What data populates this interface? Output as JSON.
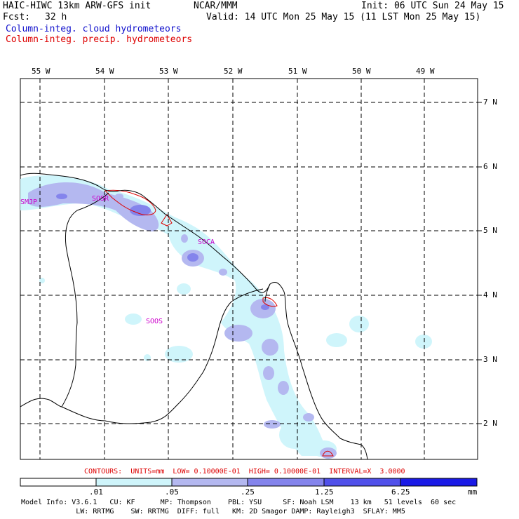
{
  "header": {
    "title": "HAIC-HIWC 13km ARW-GFS init",
    "org": "NCAR/MMM",
    "init": "Init: 06 UTC Sun 24 May 15",
    "fcst_label": "Fcst:",
    "fcst_value": "32 h",
    "valid": "Valid: 14 UTC Mon 25 May 15 (11 LST Mon 25 May 15)",
    "field1": "Column-integ. cloud hydrometeors",
    "field2": "Column-integ. precip. hydrometeors"
  },
  "colors": {
    "field1": "#1010cc",
    "field2": "#dd0000",
    "stations": "#cc00cc",
    "contours_text": "#dd0000"
  },
  "axes": {
    "lon_labels": [
      "55 W",
      "54 W",
      "53 W",
      "52 W",
      "51 W",
      "50 W",
      "49 W"
    ],
    "lat_labels": [
      "7 N",
      "6 N",
      "5 N",
      "4 N",
      "3 N",
      "2 N"
    ]
  },
  "stations": [
    "SMJP",
    "SOSR",
    "SOCA",
    "SOOS"
  ],
  "contours": {
    "text": "CONTOURS:  UNITS=mm  LOW= 0.10000E-01  HIGH= 0.10000E-01  INTERVAL=X  3.0000"
  },
  "colorbar": {
    "ticks": [
      ".01",
      ".05",
      ".25",
      "1.25",
      "6.25"
    ],
    "units": "mm",
    "colors": [
      "#ffffff",
      "#cff5fb",
      "#b4b8f0",
      "#8484ec",
      "#5050ea",
      "#1a1ae6"
    ]
  },
  "footer": {
    "line1": "Model Info: V3.6.1   CU: KF      MP: Thompson    PBL: YSU     SF: Noah LSM    13 km   51 levels  60 sec",
    "line2": "             LW: RRTMG    SW: RRTMG  DIFF: full   KM: 2D Smagor DAMP: Rayleigh3  SFLAY: MM5"
  }
}
